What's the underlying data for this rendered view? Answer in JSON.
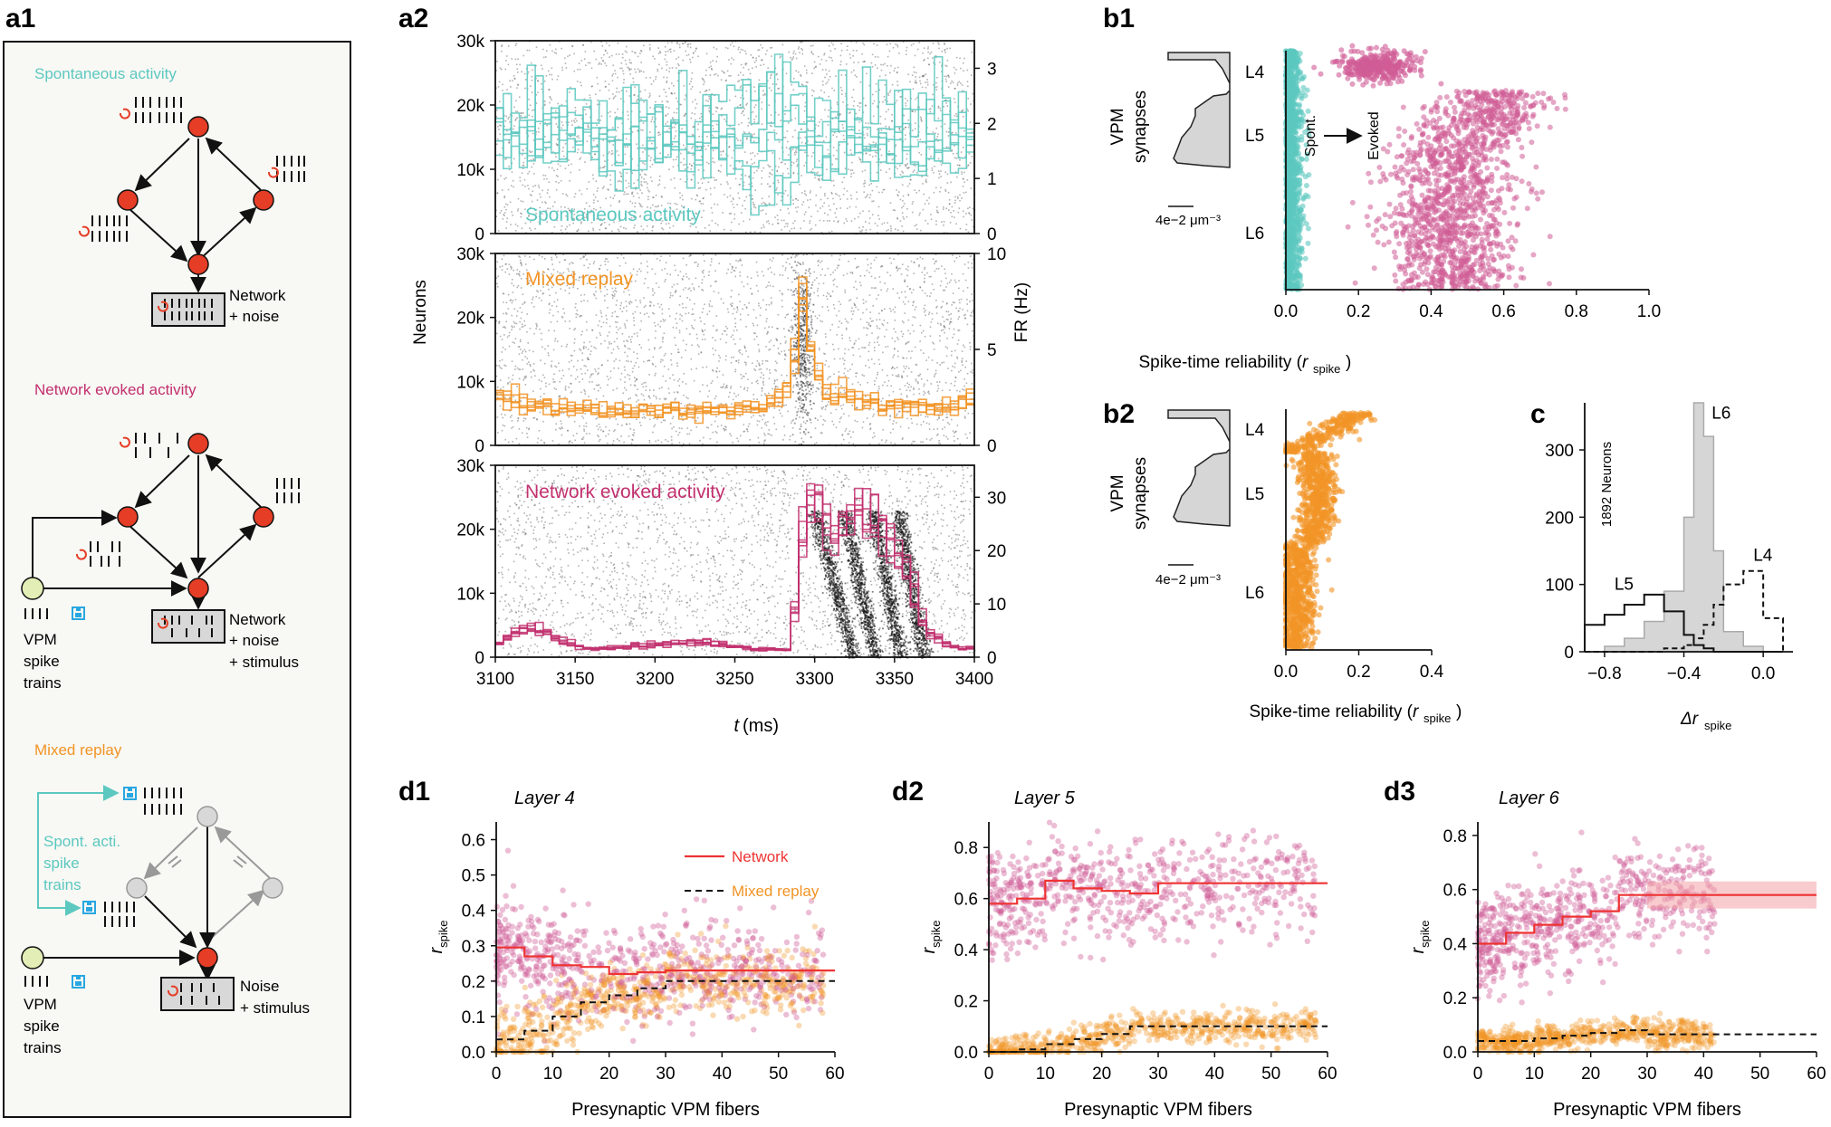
{
  "figure": {
    "panel_labels": {
      "a1": "a1",
      "a2": "a2",
      "b1": "b1",
      "b2": "b2",
      "c": "c",
      "d1": "d1",
      "d2": "d2",
      "d3": "d3"
    }
  },
  "colors": {
    "spont": "#5cc8c0",
    "evoked": "#c2306e",
    "evoked_scatter": "#d05c96",
    "mixed": "#f29426",
    "network_line": "#ee3333",
    "neuron": "#e53d26",
    "vpm_fill": "#e3eeb6",
    "save_blue": "#29a7e1",
    "hist_fill": "#d6d6d6"
  },
  "a1": {
    "sections": [
      {
        "title": "Spontaneous activity",
        "box_lines": [
          "Network",
          "+ noise"
        ],
        "side_labels": []
      },
      {
        "title": "Network evoked activity",
        "box_lines": [
          "Network",
          "+ noise",
          "+ stimulus"
        ],
        "side_labels": [
          "VPM",
          "spike",
          "trains"
        ]
      },
      {
        "title": "Mixed replay",
        "box_lines": [
          "Noise",
          "+ stimulus"
        ],
        "side_labels": [
          "VPM",
          "spike",
          "trains"
        ],
        "replay_labels": [
          "Spont. acti.",
          "spike",
          "trains"
        ]
      }
    ]
  },
  "chart_data": [
    {
      "id": "a2-spontaneous",
      "type": "raster_histogram",
      "label": "Spontaneous activity",
      "xlim": [
        3100,
        3400
      ],
      "ylim_left": [
        0,
        30000
      ],
      "yticks_left": [
        "0",
        "10k",
        "20k",
        "30k"
      ],
      "ylim_right": [
        0,
        3.5
      ],
      "yticks_right": [
        "0",
        "1",
        "2",
        "3"
      ],
      "fr_mean_hz": 1.8
    },
    {
      "id": "a2-mixed",
      "type": "raster_histogram",
      "label": "Mixed replay",
      "ylabel_left": "Neurons",
      "ylabel_right": "FR (Hz)",
      "xlim": [
        3100,
        3400
      ],
      "ylim_left": [
        0,
        30000
      ],
      "yticks_left": [
        "0",
        "10k",
        "20k",
        "30k"
      ],
      "ylim_right": [
        0,
        10
      ],
      "yticks_right": [
        "0",
        "5",
        "10"
      ],
      "fr_profile_hz": [
        [
          3100,
          2.6
        ],
        [
          3120,
          2.2
        ],
        [
          3140,
          1.9
        ],
        [
          3180,
          1.8
        ],
        [
          3230,
          1.8
        ],
        [
          3270,
          1.9
        ],
        [
          3285,
          3.0
        ],
        [
          3292,
          8.5
        ],
        [
          3298,
          5.0
        ],
        [
          3305,
          2.8
        ],
        [
          3340,
          2.2
        ],
        [
          3380,
          1.9
        ],
        [
          3400,
          2.4
        ]
      ]
    },
    {
      "id": "a2-evoked",
      "type": "raster_histogram",
      "label": "Network evoked activity",
      "xlabel": "t (ms)",
      "xlim": [
        3100,
        3400
      ],
      "xticks": [
        "3100",
        "3150",
        "3200",
        "3250",
        "3300",
        "3350",
        "3400"
      ],
      "ylim_left": [
        0,
        30000
      ],
      "yticks_left": [
        "0",
        "10k",
        "20k",
        "30k"
      ],
      "ylim_right": [
        0,
        36
      ],
      "yticks_right": [
        "0",
        "10",
        "20",
        "30"
      ],
      "fr_profile_hz": [
        [
          3100,
          2
        ],
        [
          3110,
          4
        ],
        [
          3125,
          6
        ],
        [
          3140,
          3
        ],
        [
          3160,
          1.5
        ],
        [
          3230,
          3
        ],
        [
          3260,
          1.5
        ],
        [
          3285,
          1.5
        ],
        [
          3292,
          22
        ],
        [
          3300,
          32
        ],
        [
          3310,
          22
        ],
        [
          3325,
          28
        ],
        [
          3345,
          22
        ],
        [
          3360,
          15
        ],
        [
          3370,
          5
        ],
        [
          3385,
          2
        ],
        [
          3400,
          1.5
        ]
      ]
    },
    {
      "id": "b1",
      "type": "scatter",
      "xlabel_main": "Spike-time reliability (",
      "xlabel_var": "r",
      "xlabel_sub": "spike",
      "xlabel_end": ")",
      "xlim": [
        0,
        1.0
      ],
      "xticks": [
        "0.0",
        "0.2",
        "0.4",
        "0.6",
        "0.8",
        "1.0"
      ],
      "layers": [
        "L4",
        "L5",
        "L6"
      ],
      "ylabel": [
        "VPM",
        "synapses"
      ],
      "scale_bar": "4e−2 μm⁻³",
      "annotations": [
        "Spont.",
        "Evoked"
      ],
      "series": [
        {
          "name": "Spontaneous",
          "r_range": [
            0,
            0.06
          ]
        },
        {
          "name": "Evoked",
          "clusters": [
            {
              "layer": "L4",
              "r_center": 0.25
            },
            {
              "layer": "L5-L6",
              "r_center": 0.45
            }
          ]
        }
      ]
    },
    {
      "id": "b2",
      "type": "scatter",
      "xlabel_main": "Spike-time reliability (",
      "xlabel_var": "r",
      "xlabel_sub": "spike",
      "xlabel_end": ")",
      "xlim": [
        0,
        0.4
      ],
      "xticks": [
        "0.0",
        "0.2",
        "0.4"
      ],
      "layers": [
        "L4",
        "L5",
        "L6"
      ],
      "ylabel": [
        "VPM",
        "synapses"
      ],
      "scale_bar": "4e−2 μm⁻³",
      "series": [
        {
          "name": "Mixed replay"
        }
      ]
    },
    {
      "id": "c",
      "type": "histogram",
      "xlabel_delta": "Δr",
      "xlabel_sub": "spike",
      "ylabel": "1892 Neurons",
      "xlim": [
        -0.9,
        0.15
      ],
      "xticks": [
        "−0.8",
        "−0.4",
        "0.0"
      ],
      "ylim": [
        0,
        370
      ],
      "yticks": [
        "0",
        "100",
        "200",
        "300"
      ],
      "bin_edges": [
        -0.9,
        -0.8,
        -0.7,
        -0.6,
        -0.5,
        -0.4,
        -0.35,
        -0.3,
        -0.25,
        -0.2,
        -0.1,
        0.0,
        0.1
      ],
      "series": [
        {
          "name": "L6",
          "counts": [
            0,
            8,
            20,
            45,
            90,
            200,
            370,
            320,
            150,
            30,
            8,
            0
          ]
        },
        {
          "name": "L5",
          "counts": [
            40,
            55,
            70,
            85,
            60,
            25,
            10,
            5,
            0,
            0,
            0,
            0
          ]
        },
        {
          "name": "L4",
          "counts": [
            0,
            0,
            0,
            0,
            5,
            10,
            20,
            40,
            70,
            100,
            120,
            50
          ]
        }
      ]
    },
    {
      "id": "d1",
      "type": "scatter_step",
      "title": "Layer 4",
      "xlabel": "Presynaptic VPM fibers",
      "ylabel_var": "r",
      "ylabel_sub": "spike",
      "xlim": [
        0,
        60
      ],
      "xticks": [
        "0",
        "10",
        "20",
        "30",
        "40",
        "50",
        "60"
      ],
      "ylim": [
        0,
        0.65
      ],
      "yticks": [
        "0.0",
        "0.1",
        "0.2",
        "0.3",
        "0.4",
        "0.5",
        "0.6"
      ],
      "legend": [
        "Network",
        "Mixed replay"
      ],
      "series": [
        {
          "name": "Network",
          "steps": [
            [
              0,
              0.295
            ],
            [
              5,
              0.27
            ],
            [
              10,
              0.245
            ],
            [
              15,
              0.24
            ],
            [
              20,
              0.22
            ],
            [
              25,
              0.225
            ],
            [
              30,
              0.23
            ],
            [
              60,
              0.23
            ]
          ]
        },
        {
          "name": "Mixed replay",
          "steps": [
            [
              0,
              0.035
            ],
            [
              5,
              0.06
            ],
            [
              10,
              0.1
            ],
            [
              15,
              0.14
            ],
            [
              20,
              0.16
            ],
            [
              25,
              0.18
            ],
            [
              30,
              0.2
            ],
            [
              60,
              0.2
            ]
          ]
        }
      ]
    },
    {
      "id": "d2",
      "type": "scatter_step",
      "title": "Layer 5",
      "xlabel": "Presynaptic VPM fibers",
      "ylabel_var": "r",
      "ylabel_sub": "spike",
      "xlim": [
        0,
        60
      ],
      "xticks": [
        "0",
        "10",
        "20",
        "30",
        "40",
        "50",
        "60"
      ],
      "ylim": [
        0,
        0.9
      ],
      "yticks": [
        "0.0",
        "0.2",
        "0.4",
        "0.6",
        "0.8"
      ],
      "series": [
        {
          "name": "Network",
          "steps": [
            [
              0,
              0.58
            ],
            [
              5,
              0.6
            ],
            [
              10,
              0.67
            ],
            [
              15,
              0.64
            ],
            [
              20,
              0.63
            ],
            [
              25,
              0.62
            ],
            [
              30,
              0.66
            ],
            [
              60,
              0.66
            ]
          ]
        },
        {
          "name": "Mixed replay",
          "steps": [
            [
              0,
              0.0
            ],
            [
              5,
              0.01
            ],
            [
              10,
              0.03
            ],
            [
              15,
              0.05
            ],
            [
              20,
              0.07
            ],
            [
              25,
              0.1
            ],
            [
              30,
              0.1
            ],
            [
              60,
              0.1
            ]
          ]
        }
      ]
    },
    {
      "id": "d3",
      "type": "scatter_step",
      "title": "Layer 6",
      "xlabel": "Presynaptic VPM fibers",
      "ylabel_var": "r",
      "ylabel_sub": "spike",
      "xlim": [
        0,
        60
      ],
      "xticks": [
        "0",
        "10",
        "20",
        "30",
        "40",
        "50",
        "60"
      ],
      "ylim": [
        0,
        0.85
      ],
      "yticks": [
        "0.0",
        "0.2",
        "0.4",
        "0.6",
        "0.8"
      ],
      "series": [
        {
          "name": "Network",
          "steps": [
            [
              0,
              0.4
            ],
            [
              5,
              0.44
            ],
            [
              10,
              0.47
            ],
            [
              15,
              0.5
            ],
            [
              20,
              0.52
            ],
            [
              25,
              0.58
            ],
            [
              30,
              0.58
            ],
            [
              60,
              0.58
            ]
          ]
        },
        {
          "name": "Mixed replay",
          "steps": [
            [
              0,
              0.04
            ],
            [
              5,
              0.04
            ],
            [
              10,
              0.05
            ],
            [
              15,
              0.06
            ],
            [
              20,
              0.07
            ],
            [
              25,
              0.08
            ],
            [
              30,
              0.065
            ],
            [
              60,
              0.065
            ]
          ]
        }
      ]
    }
  ]
}
